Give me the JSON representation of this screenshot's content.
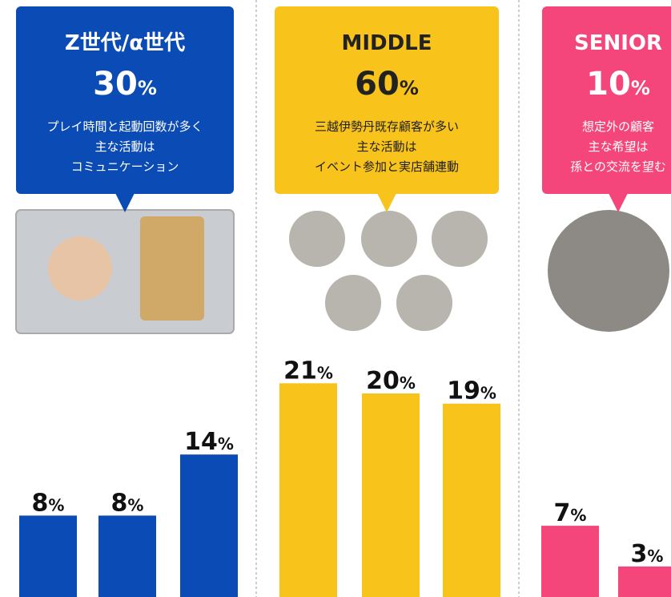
{
  "unit": "%",
  "panels": [
    {
      "title": "Z世代/α世代",
      "share": 30,
      "color": "#0a4bb5",
      "text_color": "#ffffff",
      "lines": [
        "プレイ時間と起動回数が多く",
        "主な活動は",
        "コミュニケーション"
      ],
      "values": [
        8,
        8,
        14
      ]
    },
    {
      "title": "MIDDLE",
      "share": 60,
      "color": "#f8c31a",
      "text_color": "#222222",
      "lines": [
        "三越伊勢丹既存顧客が多い",
        "主な活動は",
        "イベント参加と実店舗連動"
      ],
      "values": [
        21,
        20,
        19
      ]
    },
    {
      "title": "SENIOR",
      "share": 10,
      "color": "#f4467a",
      "text_color": "#ffffff",
      "lines": [
        "想定外の顧客",
        "主な希望は",
        "孫との交流を望む"
      ],
      "values": [
        7,
        3
      ]
    }
  ]
}
